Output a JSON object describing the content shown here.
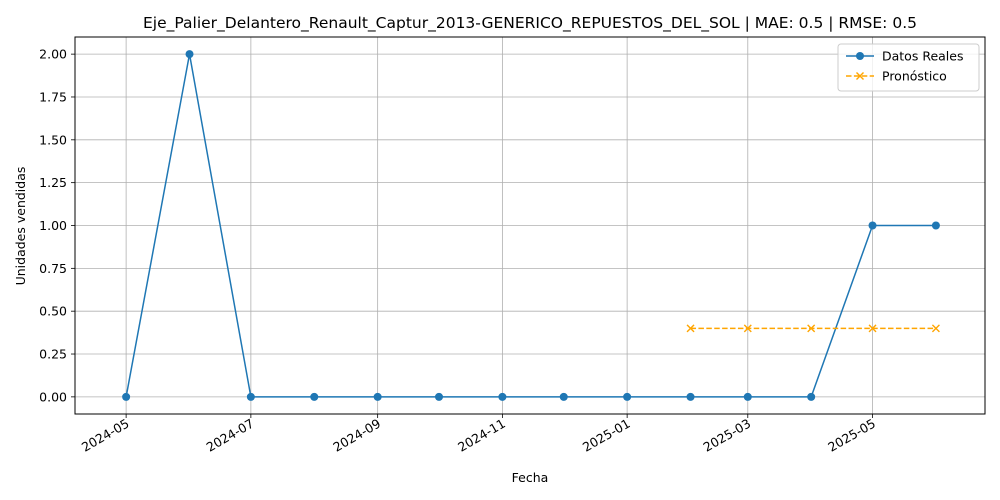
{
  "chart_data": {
    "type": "line",
    "title": "Eje_Palier_Delantero_Renault_Captur_2013-GENERICO_REPUESTOS_DEL_SOL | MAE: 0.5 | RMSE: 0.5",
    "xlabel": "Fecha",
    "ylabel": "Unidades vendidas",
    "x_ticks": [
      "2024-05",
      "2024-07",
      "2024-09",
      "2024-11",
      "2025-01",
      "2025-03",
      "2025-05"
    ],
    "y_ticks": [
      "0.00",
      "0.25",
      "0.50",
      "0.75",
      "1.00",
      "1.25",
      "1.50",
      "1.75",
      "2.00"
    ],
    "ylim": [
      -0.1,
      2.1
    ],
    "xlim": [
      "2024-04-06",
      "2025-06-25"
    ],
    "grid": true,
    "legend_position": "top-right",
    "series": [
      {
        "name": "Datos Reales",
        "color": "#1f77b4",
        "marker": "circle",
        "linestyle": "solid",
        "x": [
          "2024-05-01",
          "2024-06-01",
          "2024-07-01",
          "2024-08-01",
          "2024-09-01",
          "2024-10-01",
          "2024-11-01",
          "2024-12-01",
          "2025-01-01",
          "2025-02-01",
          "2025-03-01",
          "2025-04-01",
          "2025-05-01",
          "2025-06-01"
        ],
        "values": [
          0,
          2,
          0,
          0,
          0,
          0,
          0,
          0,
          0,
          0,
          0,
          0,
          1,
          1
        ]
      },
      {
        "name": "Pronóstico",
        "color": "#ffa500",
        "marker": "x",
        "linestyle": "dashed",
        "x": [
          "2025-02-01",
          "2025-03-01",
          "2025-04-01",
          "2025-05-01",
          "2025-06-01"
        ],
        "values": [
          0.4,
          0.4,
          0.4,
          0.4,
          0.4
        ]
      }
    ]
  }
}
